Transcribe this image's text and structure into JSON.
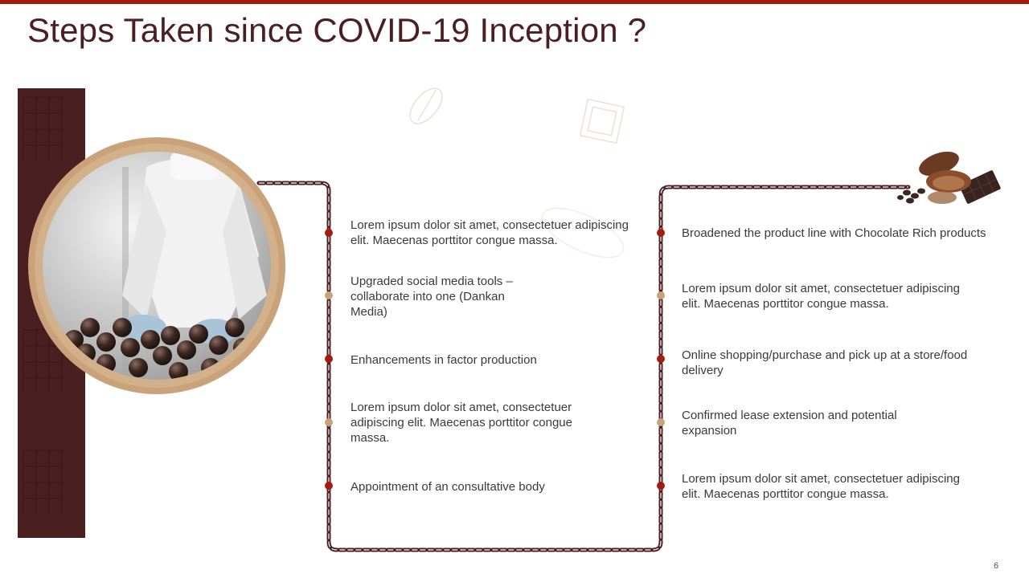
{
  "slide": {
    "title": "Steps Taken since COVID-19 Inception ?",
    "page_number": "6"
  },
  "colors": {
    "accent": "#a51c0e",
    "dark_brown": "#4a1f22",
    "gold": "#c9a27a"
  },
  "photo": {
    "icon": "chocolate-factory-photo"
  },
  "corner_image": {
    "icon": "cocoa-beans-chocolate-icon"
  },
  "left_items": [
    {
      "text": "Lorem ipsum dolor sit amet, consectetuer adipiscing elit. Maecenas porttitor congue massa.",
      "dot": "red"
    },
    {
      "text": "Upgraded social media tools – collaborate into one (Dankan Media)",
      "dot": "gold"
    },
    {
      "text": "Enhancements  in factor production",
      "dot": "red"
    },
    {
      "text": "Lorem ipsum dolor sit amet, consectetuer adipiscing elit. Maecenas porttitor congue massa.",
      "dot": "gold"
    },
    {
      "text": "Appointment of an consultative  body",
      "dot": "red"
    }
  ],
  "right_items": [
    {
      "text": "Broadened the product line with Chocolate Rich products",
      "dot": "red"
    },
    {
      "text": "Lorem ipsum dolor sit amet, consectetuer adipiscing elit. Maecenas porttitor congue massa.",
      "dot": "gold"
    },
    {
      "text": "Online shopping/purchase and pick up at a store/food delivery",
      "dot": "red"
    },
    {
      "text": "Confirmed lease extension and potential expansion",
      "dot": "gold"
    },
    {
      "text": "Lorem ipsum dolor sit amet, consectetuer adipiscing elit. Maecenas porttitor congue massa.",
      "dot": "red"
    }
  ]
}
